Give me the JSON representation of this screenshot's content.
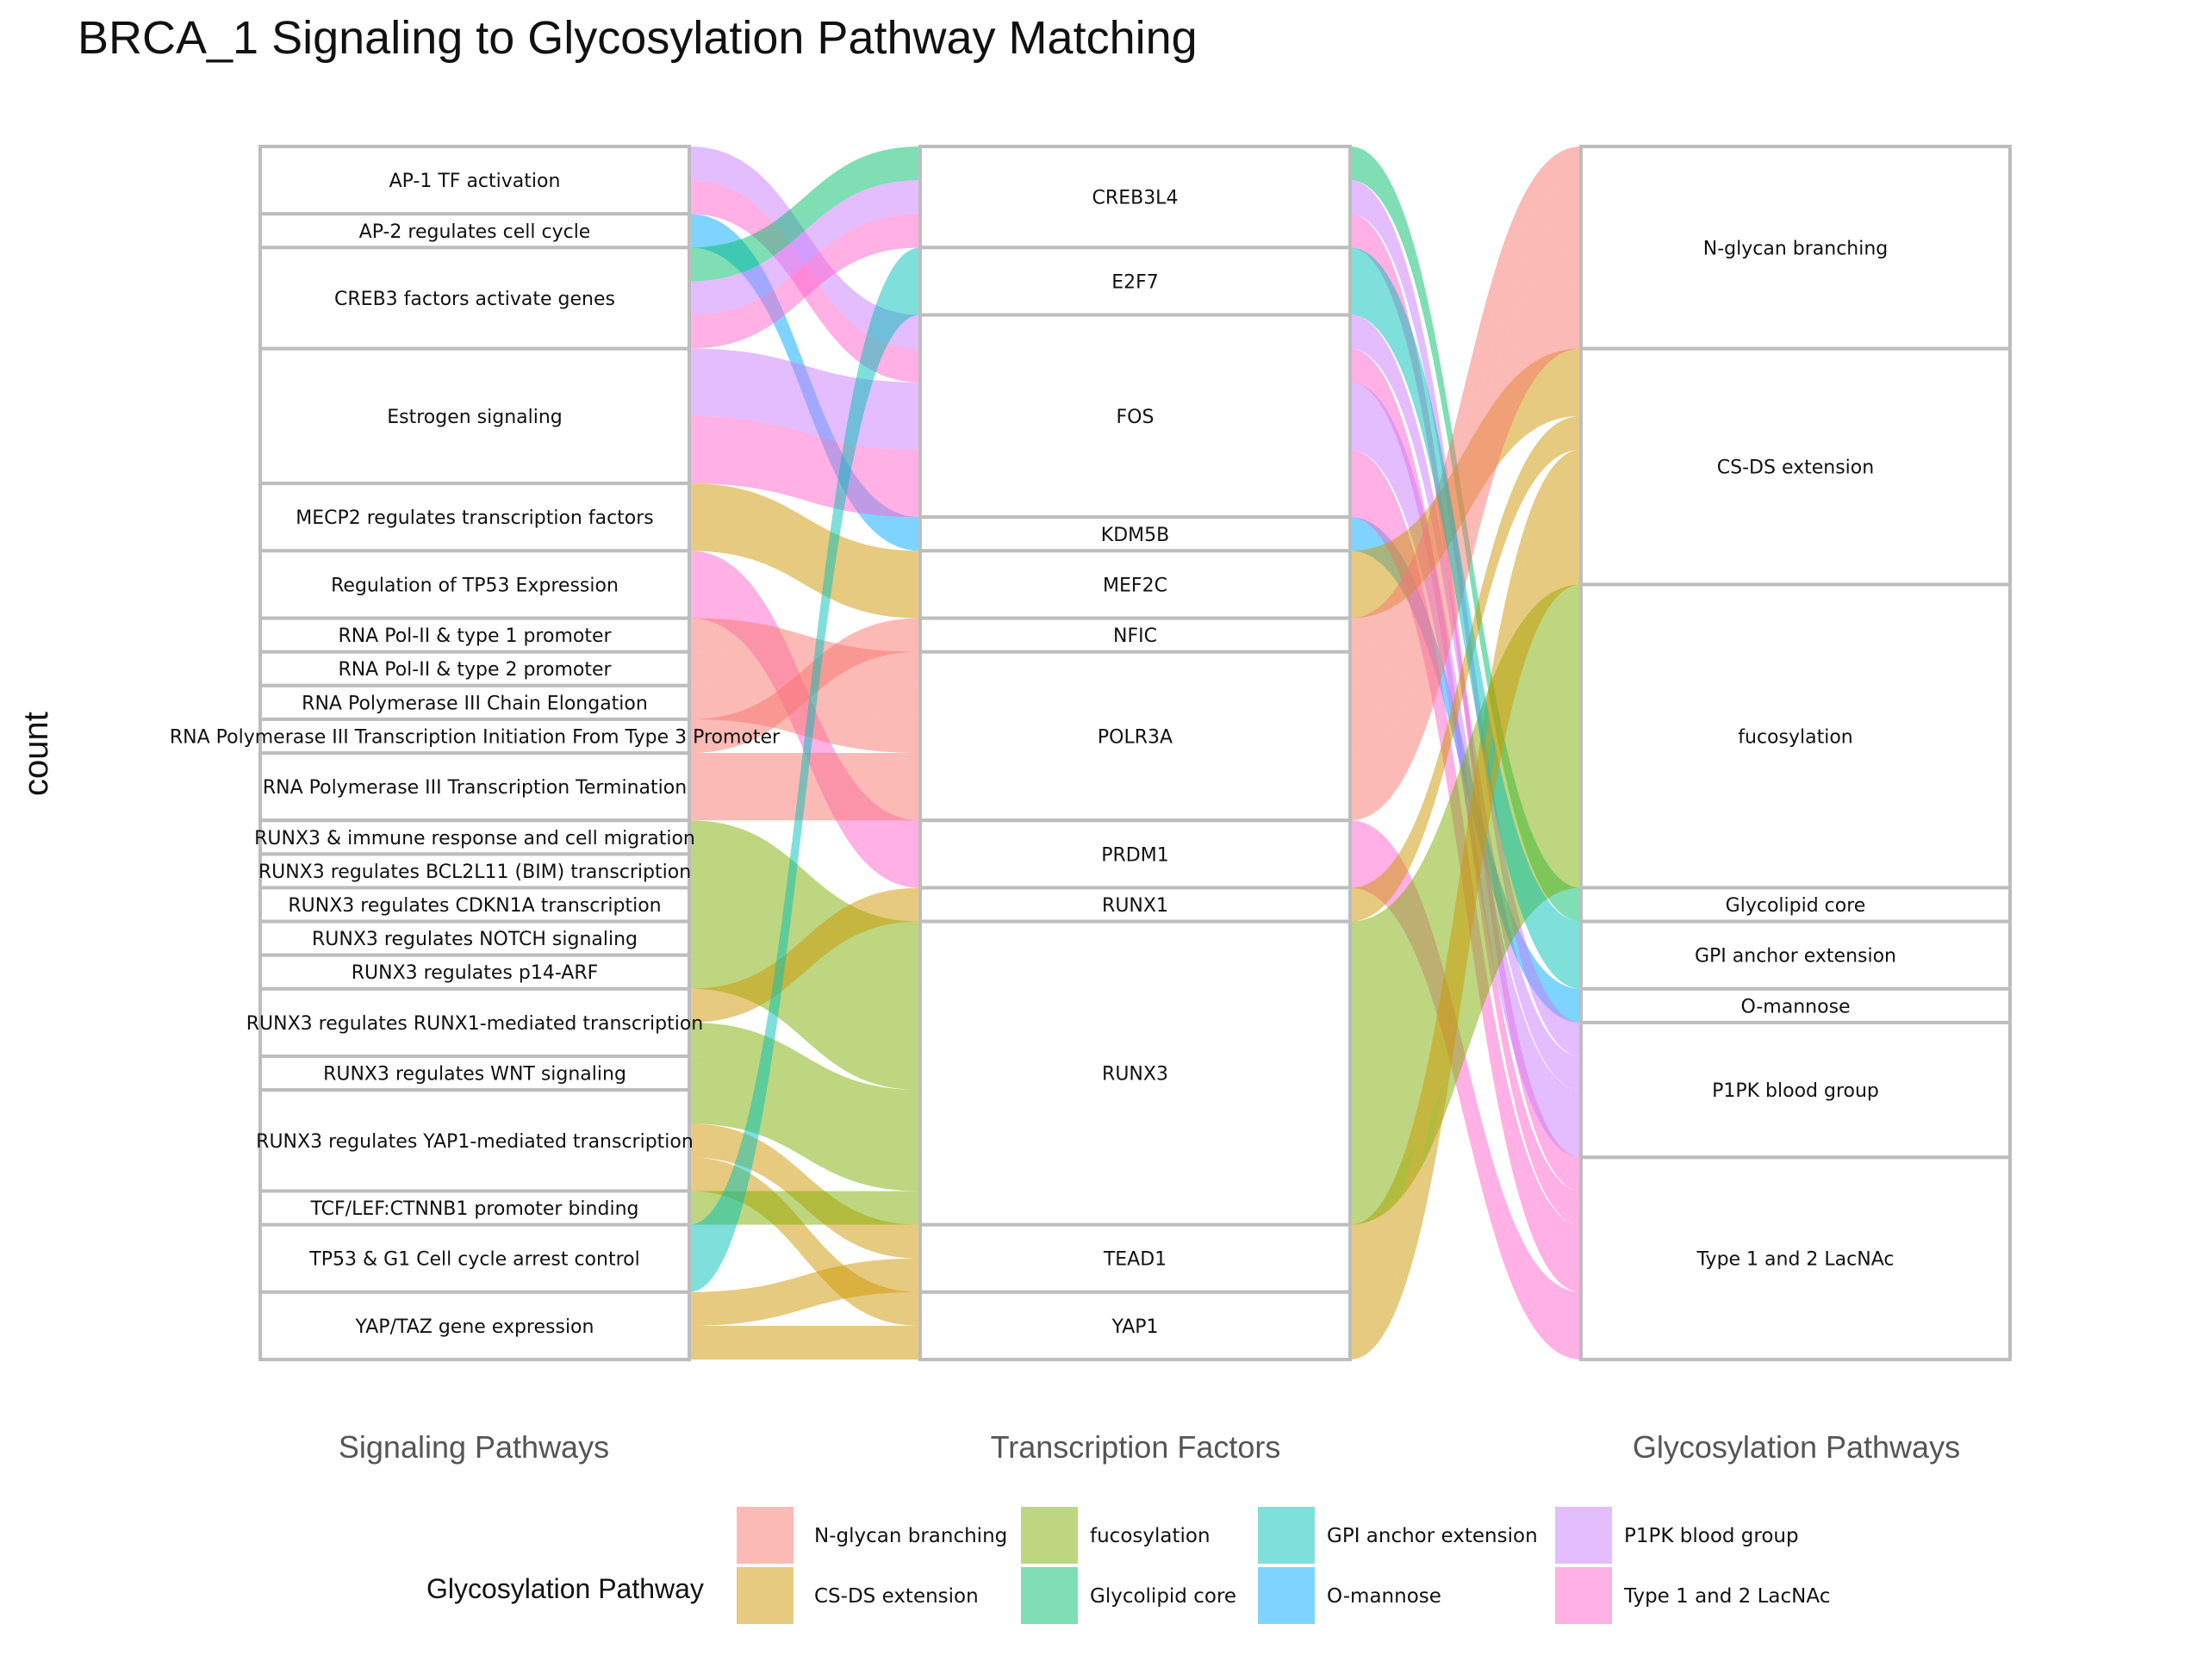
{
  "chart_data": {
    "type": "alluvial",
    "title": "BRCA_1 Signaling to Glycosylation Pathway Matching",
    "ylabel": "count",
    "axes": [
      "Signaling Pathways",
      "Transcription Factors",
      "Glycosylation Pathways"
    ],
    "legend": {
      "title": "Glycosylation Pathway",
      "position": "bottom",
      "items": [
        {
          "name": "N-glycan branching",
          "color": "#F8766D"
        },
        {
          "name": "CS-DS extension",
          "color": "#CD9600"
        },
        {
          "name": "fucosylation",
          "color": "#7CAE00"
        },
        {
          "name": "Glycolipid core",
          "color": "#00BE67"
        },
        {
          "name": "GPI anchor extension",
          "color": "#00C0B8"
        },
        {
          "name": "O-mannose",
          "color": "#00A9FF"
        },
        {
          "name": "P1PK blood group",
          "color": "#C77CFF"
        },
        {
          "name": "Type 1 and 2 LacNAc",
          "color": "#FF61CC"
        }
      ]
    },
    "signaling": [
      {
        "name": "AP-1 TF activation",
        "count": 2
      },
      {
        "name": "AP-2 regulates cell cycle",
        "count": 1
      },
      {
        "name": "CREB3 factors activate genes",
        "count": 3
      },
      {
        "name": "Estrogen signaling",
        "count": 4
      },
      {
        "name": "MECP2 regulates transcription factors",
        "count": 2
      },
      {
        "name": "Regulation of TP53 Expression",
        "count": 2
      },
      {
        "name": "RNA Pol-II & type 1 promoter",
        "count": 1
      },
      {
        "name": "RNA Pol-II & type 2 promoter",
        "count": 1
      },
      {
        "name": "RNA Polymerase III Chain Elongation",
        "count": 1
      },
      {
        "name": "RNA Polymerase III Transcription Initiation From Type 3 Promoter",
        "count": 1
      },
      {
        "name": "RNA Polymerase III Transcription Termination",
        "count": 2
      },
      {
        "name": "RUNX3 & immune response and cell migration",
        "count": 1
      },
      {
        "name": "RUNX3 regulates BCL2L11 (BIM) transcription",
        "count": 1
      },
      {
        "name": "RUNX3 regulates CDKN1A transcription",
        "count": 1
      },
      {
        "name": "RUNX3 regulates NOTCH signaling",
        "count": 1
      },
      {
        "name": "RUNX3 regulates p14-ARF",
        "count": 1
      },
      {
        "name": "RUNX3 regulates RUNX1-mediated transcription",
        "count": 2
      },
      {
        "name": "RUNX3 regulates WNT signaling",
        "count": 1
      },
      {
        "name": "RUNX3 regulates YAP1-mediated transcription",
        "count": 3
      },
      {
        "name": "TCF/LEF:CTNNB1 promoter binding",
        "count": 1
      },
      {
        "name": "TP53 & G1 Cell cycle arrest control",
        "count": 2
      },
      {
        "name": "YAP/TAZ gene expression",
        "count": 2
      }
    ],
    "transcription_factors": [
      {
        "name": "CREB3L4",
        "count": 3
      },
      {
        "name": "E2F7",
        "count": 2
      },
      {
        "name": "FOS",
        "count": 6
      },
      {
        "name": "KDM5B",
        "count": 1
      },
      {
        "name": "MEF2C",
        "count": 2
      },
      {
        "name": "NFIC",
        "count": 1
      },
      {
        "name": "POLR3A",
        "count": 5
      },
      {
        "name": "PRDM1",
        "count": 2
      },
      {
        "name": "RUNX1",
        "count": 1
      },
      {
        "name": "RUNX3",
        "count": 9
      },
      {
        "name": "TEAD1",
        "count": 2
      },
      {
        "name": "YAP1",
        "count": 2
      }
    ],
    "glycosylation": [
      {
        "name": "N-glycan branching",
        "count": 6
      },
      {
        "name": "CS-DS extension",
        "count": 7
      },
      {
        "name": "fucosylation",
        "count": 9
      },
      {
        "name": "Glycolipid core",
        "count": 1
      },
      {
        "name": "GPI anchor extension",
        "count": 2
      },
      {
        "name": "O-mannose",
        "count": 1
      },
      {
        "name": "P1PK blood group",
        "count": 4
      },
      {
        "name": "Type 1 and 2 LacNAc",
        "count": 6
      }
    ],
    "flows": [
      {
        "signaling": "AP-1 TF activation",
        "tf": "FOS",
        "glyco": "P1PK blood group",
        "count": 1
      },
      {
        "signaling": "AP-1 TF activation",
        "tf": "FOS",
        "glyco": "Type 1 and 2 LacNAc",
        "count": 1
      },
      {
        "signaling": "AP-2 regulates cell cycle",
        "tf": "KDM5B",
        "glyco": "O-mannose",
        "count": 1
      },
      {
        "signaling": "CREB3 factors activate genes",
        "tf": "CREB3L4",
        "glyco": "Glycolipid core",
        "count": 1
      },
      {
        "signaling": "CREB3 factors activate genes",
        "tf": "CREB3L4",
        "glyco": "P1PK blood group",
        "count": 1
      },
      {
        "signaling": "CREB3 factors activate genes",
        "tf": "CREB3L4",
        "glyco": "Type 1 and 2 LacNAc",
        "count": 1
      },
      {
        "signaling": "Estrogen signaling",
        "tf": "FOS",
        "glyco": "P1PK blood group",
        "count": 2
      },
      {
        "signaling": "Estrogen signaling",
        "tf": "FOS",
        "glyco": "Type 1 and 2 LacNAc",
        "count": 2
      },
      {
        "signaling": "MECP2 regulates transcription factors",
        "tf": "MEF2C",
        "glyco": "CS-DS extension",
        "count": 2
      },
      {
        "signaling": "Regulation of TP53 Expression",
        "tf": "PRDM1",
        "glyco": "Type 1 and 2 LacNAc",
        "count": 2
      },
      {
        "signaling": "RNA Pol-II & type 1 promoter",
        "tf": "POLR3A",
        "glyco": "N-glycan branching",
        "count": 1
      },
      {
        "signaling": "RNA Pol-II & type 2 promoter",
        "tf": "POLR3A",
        "glyco": "N-glycan branching",
        "count": 1
      },
      {
        "signaling": "RNA Polymerase III Chain Elongation",
        "tf": "POLR3A",
        "glyco": "N-glycan branching",
        "count": 1
      },
      {
        "signaling": "RNA Polymerase III Transcription Initiation From Type 3 Promoter",
        "tf": "NFIC",
        "glyco": "N-glycan branching",
        "count": 1
      },
      {
        "signaling": "RNA Polymerase III Transcription Termination",
        "tf": "POLR3A",
        "glyco": "N-glycan branching",
        "count": 2
      },
      {
        "signaling": "RUNX3 & immune response and cell migration",
        "tf": "RUNX3",
        "glyco": "fucosylation",
        "count": 1
      },
      {
        "signaling": "RUNX3 regulates BCL2L11 (BIM) transcription",
        "tf": "RUNX3",
        "glyco": "fucosylation",
        "count": 1
      },
      {
        "signaling": "RUNX3 regulates CDKN1A transcription",
        "tf": "RUNX3",
        "glyco": "fucosylation",
        "count": 1
      },
      {
        "signaling": "RUNX3 regulates NOTCH signaling",
        "tf": "RUNX3",
        "glyco": "fucosylation",
        "count": 1
      },
      {
        "signaling": "RUNX3 regulates p14-ARF",
        "tf": "RUNX3",
        "glyco": "fucosylation",
        "count": 1
      },
      {
        "signaling": "RUNX3 regulates RUNX1-mediated transcription",
        "tf": "RUNX1",
        "glyco": "CS-DS extension",
        "count": 1
      },
      {
        "signaling": "RUNX3 regulates RUNX1-mediated transcription",
        "tf": "RUNX3",
        "glyco": "fucosylation",
        "count": 1
      },
      {
        "signaling": "RUNX3 regulates WNT signaling",
        "tf": "RUNX3",
        "glyco": "fucosylation",
        "count": 1
      },
      {
        "signaling": "RUNX3 regulates YAP1-mediated transcription",
        "tf": "RUNX3",
        "glyco": "fucosylation",
        "count": 1
      },
      {
        "signaling": "RUNX3 regulates YAP1-mediated transcription",
        "tf": "TEAD1",
        "glyco": "CS-DS extension",
        "count": 1
      },
      {
        "signaling": "RUNX3 regulates YAP1-mediated transcription",
        "tf": "YAP1",
        "glyco": "CS-DS extension",
        "count": 1
      },
      {
        "signaling": "TCF/LEF:CTNNB1 promoter binding",
        "tf": "RUNX3",
        "glyco": "fucosylation",
        "count": 1
      },
      {
        "signaling": "TP53 & G1 Cell cycle arrest control",
        "tf": "E2F7",
        "glyco": "GPI anchor extension",
        "count": 2
      },
      {
        "signaling": "YAP/TAZ gene expression",
        "tf": "TEAD1",
        "glyco": "CS-DS extension",
        "count": 1
      },
      {
        "signaling": "YAP/TAZ gene expression",
        "tf": "YAP1",
        "glyco": "CS-DS extension",
        "count": 1
      }
    ]
  }
}
